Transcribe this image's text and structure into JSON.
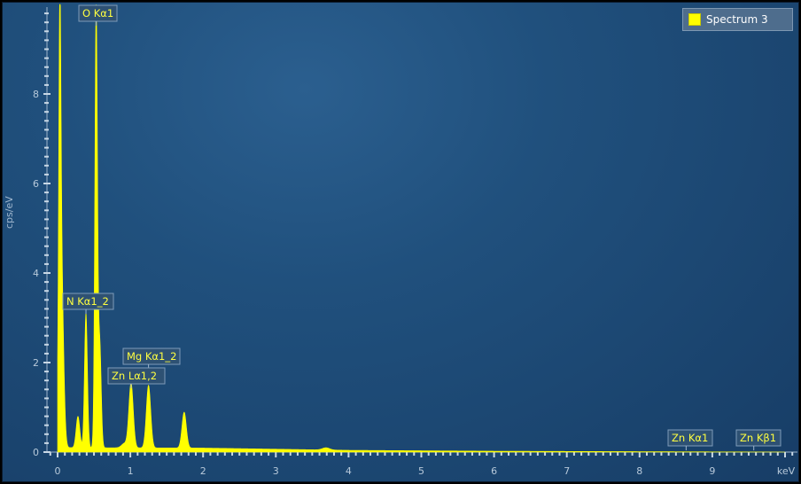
{
  "legend": {
    "label": "Spectrum 3",
    "color": "#ffff00"
  },
  "chart_data": {
    "type": "area",
    "title": "",
    "xlabel": "keV",
    "ylabel": "cps/eV",
    "xlim": [
      -0.1,
      10.1
    ],
    "ylim": [
      0,
      10
    ],
    "xticks": [
      0,
      1,
      2,
      3,
      4,
      5,
      6,
      7,
      8,
      9
    ],
    "yticks": [
      0,
      2,
      4,
      6,
      8
    ],
    "grid": false,
    "legend_position": "top-right",
    "series": [
      {
        "name": "Spectrum 3",
        "color": "#ffff00",
        "peaks": [
          {
            "x": 0.03,
            "y": 6.9,
            "w": 0.015
          },
          {
            "x": 0.05,
            "y": 4.2,
            "w": 0.03
          },
          {
            "x": 0.28,
            "y": 0.7,
            "w": 0.025
          },
          {
            "x": 0.39,
            "y": 3.0,
            "w": 0.02
          },
          {
            "x": 0.53,
            "y": 9.8,
            "w": 0.018
          },
          {
            "x": 0.58,
            "y": 2.3,
            "w": 0.02
          },
          {
            "x": 0.92,
            "y": 0.1,
            "w": 0.04
          },
          {
            "x": 1.01,
            "y": 1.45,
            "w": 0.03
          },
          {
            "x": 1.25,
            "y": 1.4,
            "w": 0.03
          },
          {
            "x": 1.74,
            "y": 0.8,
            "w": 0.03
          },
          {
            "x": 3.69,
            "y": 0.05,
            "w": 0.05
          }
        ],
        "background": [
          [
            0,
            0.1
          ],
          [
            2,
            0.09
          ],
          [
            4,
            0.04
          ],
          [
            6,
            0.02
          ],
          [
            10,
            0.0
          ]
        ]
      }
    ],
    "annotations": [
      {
        "label": "O Kα1",
        "x": 0.53,
        "y": 9.8
      },
      {
        "label": "N Kα1_2",
        "x": 0.39,
        "y": 3.0
      },
      {
        "label": "Mg Kα1_2",
        "x": 1.25,
        "y": 1.4
      },
      {
        "label": "Zn Lα1,2",
        "x": 1.01,
        "y": 1.45
      },
      {
        "label": "Zn Kα1",
        "x": 8.64,
        "y": 0
      },
      {
        "label": "Zn Kβ1",
        "x": 9.57,
        "y": 0
      }
    ]
  }
}
